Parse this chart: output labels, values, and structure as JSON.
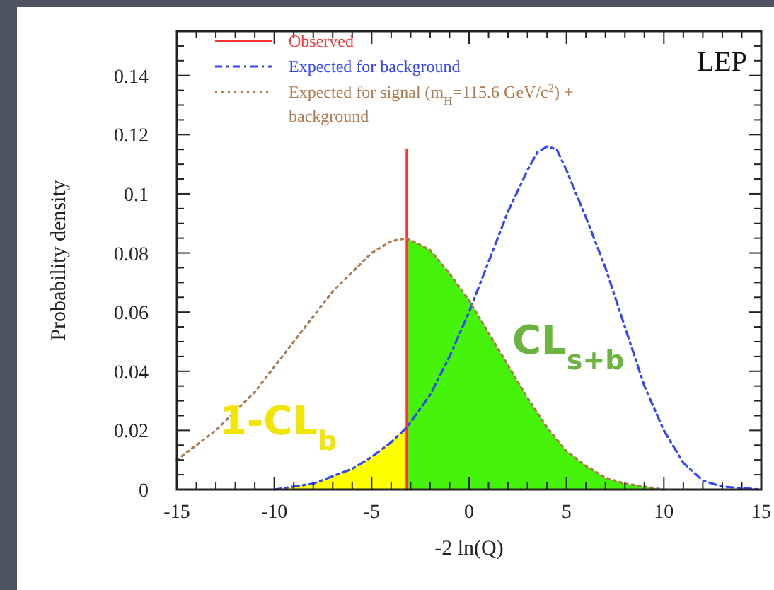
{
  "chart_data": {
    "type": "line",
    "xlabel": "-2 ln(Q)",
    "ylabel": "Probability density",
    "annotations": [
      "LEP",
      "CL$_{s+b}$",
      "1-CL$_{b}$"
    ],
    "xlim": [
      -15,
      15
    ],
    "ylim": [
      0,
      0.155
    ],
    "xticks": [
      -15,
      -10,
      -5,
      0,
      5,
      10,
      15,
      {
        "value": -14,
        "label": null
      },
      {
        "value": -13,
        "label": null
      },
      {
        "value": -12,
        "label": null
      },
      {
        "value": -11,
        "label": null
      },
      {
        "value": -9,
        "label": null
      },
      {
        "value": -8,
        "label": null
      },
      {
        "value": -7,
        "label": null
      },
      {
        "value": -6,
        "label": null
      },
      {
        "value": -4,
        "label": null
      },
      {
        "value": -3,
        "label": null
      },
      {
        "value": -2,
        "label": null
      },
      {
        "value": -1,
        "label": null
      },
      {
        "value": 1,
        "label": null
      },
      {
        "value": 2,
        "label": null
      },
      {
        "value": 3,
        "label": null
      },
      {
        "value": 4,
        "label": null
      },
      {
        "value": 6,
        "label": null
      },
      {
        "value": 7,
        "label": null
      },
      {
        "value": 8,
        "label": null
      },
      {
        "value": 9,
        "label": null
      },
      {
        "value": 11,
        "label": null
      },
      {
        "value": 12,
        "label": null
      },
      {
        "value": 13,
        "label": null
      },
      {
        "value": 14,
        "label": null
      }
    ],
    "yticks": [
      0,
      0.02,
      0.04,
      0.06,
      0.08,
      0.1,
      0.12,
      0.14,
      {
        "value": 0.005,
        "label": null
      },
      {
        "value": 0.01,
        "label": null
      },
      {
        "value": 0.015,
        "label": null
      },
      {
        "value": 0.025,
        "label": null
      },
      {
        "value": 0.03,
        "label": null
      },
      {
        "value": 0.035,
        "label": null
      },
      {
        "value": 0.045,
        "label": null
      },
      {
        "value": 0.05,
        "label": null
      },
      {
        "value": 0.055,
        "label": null
      },
      {
        "value": 0.065,
        "label": null
      },
      {
        "value": 0.07,
        "label": null
      },
      {
        "value": 0.075,
        "label": null
      },
      {
        "value": 0.085,
        "label": null
      },
      {
        "value": 0.09,
        "label": null
      },
      {
        "value": 0.095,
        "label": null
      },
      {
        "value": 0.105,
        "label": null
      },
      {
        "value": 0.11,
        "label": null
      },
      {
        "value": 0.115,
        "label": null
      },
      {
        "value": 0.125,
        "label": null
      },
      {
        "value": 0.13,
        "label": null
      },
      {
        "value": 0.135,
        "label": null
      },
      {
        "value": 0.145,
        "label": null
      },
      {
        "value": 0.15,
        "label": null
      }
    ],
    "legend": "top left",
    "marker": "none",
    "grid": false,
    "series": [
      {
        "type": "area",
        "color": "#44f20a",
        "x": [
          -3.2,
          -2,
          -1,
          0,
          1,
          2,
          3,
          4,
          5,
          6,
          7,
          8,
          9,
          10
        ],
        "values": [
          0.085,
          0.081,
          0.073,
          0.064,
          0.053,
          0.042,
          0.031,
          0.021,
          0.013,
          0.008,
          0.004,
          0.002,
          0.001,
          0
        ]
      },
      {
        "type": "area",
        "color": "#ffff00",
        "x": [
          -15,
          -10,
          -8,
          -6,
          -5,
          -4,
          -3.2
        ],
        "values": [
          0,
          0,
          0.002,
          0.007,
          0.011,
          0.016,
          0.021
        ]
      },
      {
        "name": "Observed",
        "color": "#ff3333",
        "line_style": "solid",
        "x": [
          -3.2,
          -3.2
        ],
        "values": [
          0,
          0.115
        ]
      },
      {
        "name": "Expected for background",
        "color": "#3344ff",
        "line_style": "dashed",
        "x": [
          -10,
          -8,
          -6,
          -5,
          -4,
          -3.2,
          -2,
          -1,
          0,
          1,
          2,
          3,
          3.5,
          4,
          4.5,
          5,
          6,
          7,
          8,
          9,
          10,
          11,
          12,
          13,
          15
        ],
        "values": [
          0,
          0.002,
          0.007,
          0.011,
          0.016,
          0.021,
          0.032,
          0.045,
          0.06,
          0.077,
          0.094,
          0.108,
          0.114,
          0.116,
          0.115,
          0.108,
          0.092,
          0.075,
          0.055,
          0.035,
          0.02,
          0.009,
          0.003,
          0.001,
          0
        ]
      },
      {
        "name": "Expected for signal (m$_{H}$=115.6 GeV/c$^{2}$) + background",
        "color": "#b07a50",
        "line_style": "dotted",
        "x": [
          -15,
          -13,
          -11,
          -9,
          -7,
          -5,
          -4,
          -3.2,
          -2,
          -1,
          0,
          1,
          2,
          3,
          4,
          5,
          6,
          7,
          8,
          9,
          10
        ],
        "values": [
          0.01,
          0.02,
          0.033,
          0.05,
          0.067,
          0.08,
          0.084,
          0.085,
          0.081,
          0.073,
          0.064,
          0.053,
          0.042,
          0.031,
          0.021,
          0.013,
          0.008,
          0.004,
          0.002,
          0.001,
          0
        ]
      }
    ]
  }
}
